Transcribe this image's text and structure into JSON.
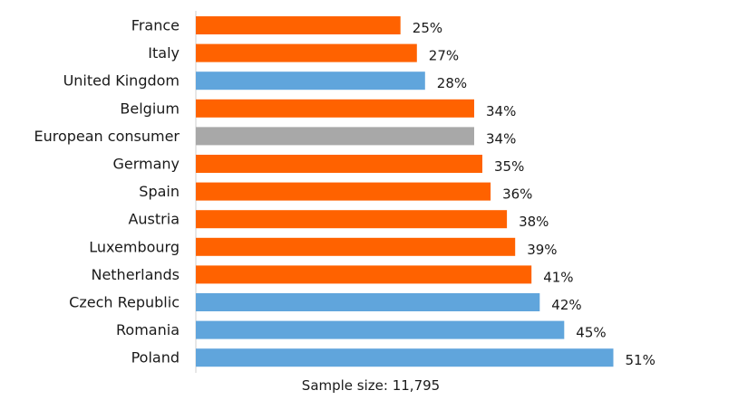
{
  "chart_data": {
    "type": "bar",
    "orientation": "horizontal",
    "categories": [
      "France",
      "Italy",
      "United Kingdom",
      "Belgium",
      "European consumer",
      "Germany",
      "Spain",
      "Austria",
      "Luxembourg",
      "Netherlands",
      "Czech Republic",
      "Romania",
      "Poland"
    ],
    "values": [
      25,
      27,
      28,
      34,
      34,
      35,
      36,
      38,
      39,
      41,
      42,
      45,
      51
    ],
    "value_labels": [
      "25%",
      "27%",
      "28%",
      "34%",
      "34%",
      "35%",
      "36%",
      "38%",
      "39%",
      "41%",
      "42%",
      "45%",
      "51%"
    ],
    "bar_groups": [
      "eurozone",
      "eurozone",
      "non-eurozone",
      "eurozone",
      "average",
      "eurozone",
      "eurozone",
      "eurozone",
      "eurozone",
      "eurozone",
      "non-eurozone",
      "non-eurozone",
      "non-eurozone"
    ],
    "colors": {
      "eurozone": "#FF6200",
      "non-eurozone": "#60A5DC",
      "average": "#A8A8A8",
      "axis": "#CFCFCF"
    },
    "unit": "%",
    "xlim": [
      0,
      51
    ],
    "grid": false,
    "legend": "none",
    "footnote": "Sample size: 11,795"
  }
}
